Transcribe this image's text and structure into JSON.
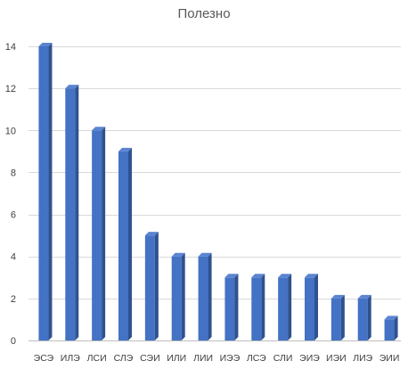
{
  "chart_data": {
    "type": "bar",
    "title": "Полезно",
    "xlabel": "",
    "ylabel": "",
    "categories": [
      "ЭСЭ",
      "ИЛЭ",
      "ЛСИ",
      "СЛЭ",
      "СЭИ",
      "ИЛИ",
      "ЛИИ",
      "ИЭЭ",
      "ЛСЭ",
      "СЛИ",
      "ЭИЭ",
      "ИЭИ",
      "ЛИЭ",
      "ЭИИ"
    ],
    "values": [
      14,
      12,
      10,
      9,
      5,
      4,
      4,
      3,
      3,
      3,
      3,
      2,
      2,
      1
    ],
    "ylim": [
      0,
      14
    ],
    "yticks": [
      0,
      2,
      4,
      6,
      8,
      10,
      12,
      14
    ],
    "grid": true,
    "style": "3d-column",
    "colors": {
      "bar_front": "#4472c4",
      "bar_side": "#2f528f",
      "bar_top": "#5b84d1"
    }
  }
}
